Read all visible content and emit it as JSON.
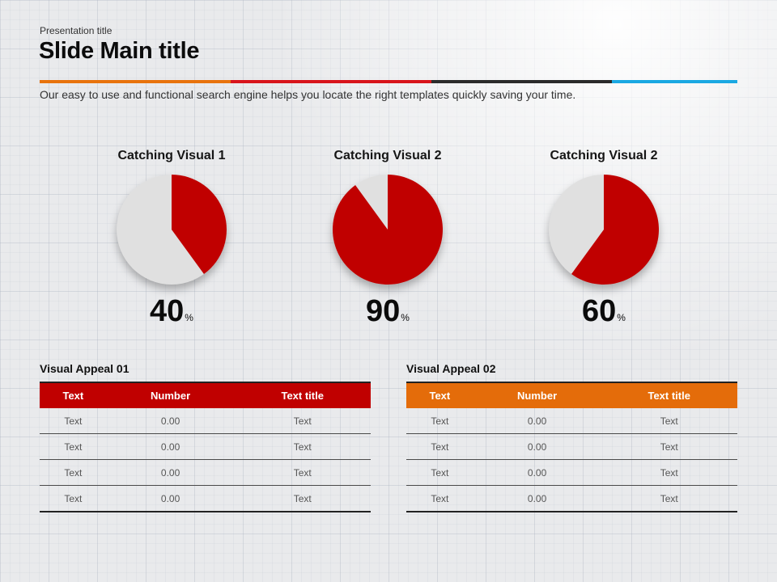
{
  "header": {
    "presentation_title": "Presentation title",
    "main_title": "Slide Main title",
    "subtitle": "Our easy to use and functional search engine helps you locate the right templates quickly saving your time.",
    "accent_colors": [
      "#e8730c",
      "#d8141b",
      "#2b2b2b",
      "#1aa8e2"
    ]
  },
  "colors": {
    "pie_fill": "#c00000",
    "pie_rest": "#e0e0e0",
    "table1_header": "#c00000",
    "table2_header": "#e46c0a"
  },
  "pies": [
    {
      "title": "Catching Visual 1",
      "value": "40",
      "suffix": "%"
    },
    {
      "title": "Catching Visual 2",
      "value": "90",
      "suffix": "%"
    },
    {
      "title": "Catching Visual 2",
      "value": "60",
      "suffix": "%"
    }
  ],
  "chart_data": [
    {
      "type": "pie",
      "title": "Catching Visual 1",
      "values": [
        40,
        60
      ]
    },
    {
      "type": "pie",
      "title": "Catching Visual 2",
      "values": [
        90,
        10
      ]
    },
    {
      "type": "pie",
      "title": "Catching Visual 2",
      "values": [
        60,
        40
      ]
    }
  ],
  "tables": [
    {
      "title": "Visual Appeal 01",
      "headers": [
        "Text",
        "Number",
        "Text title"
      ],
      "rows": [
        [
          "Text",
          "0.00",
          "Text"
        ],
        [
          "Text",
          "0.00",
          "Text"
        ],
        [
          "Text",
          "0.00",
          "Text"
        ],
        [
          "Text",
          "0.00",
          "Text"
        ]
      ]
    },
    {
      "title": "Visual Appeal 02",
      "headers": [
        "Text",
        "Number",
        "Text title"
      ],
      "rows": [
        [
          "Text",
          "0.00",
          "Text"
        ],
        [
          "Text",
          "0.00",
          "Text"
        ],
        [
          "Text",
          "0.00",
          "Text"
        ],
        [
          "Text",
          "0.00",
          "Text"
        ]
      ]
    }
  ]
}
